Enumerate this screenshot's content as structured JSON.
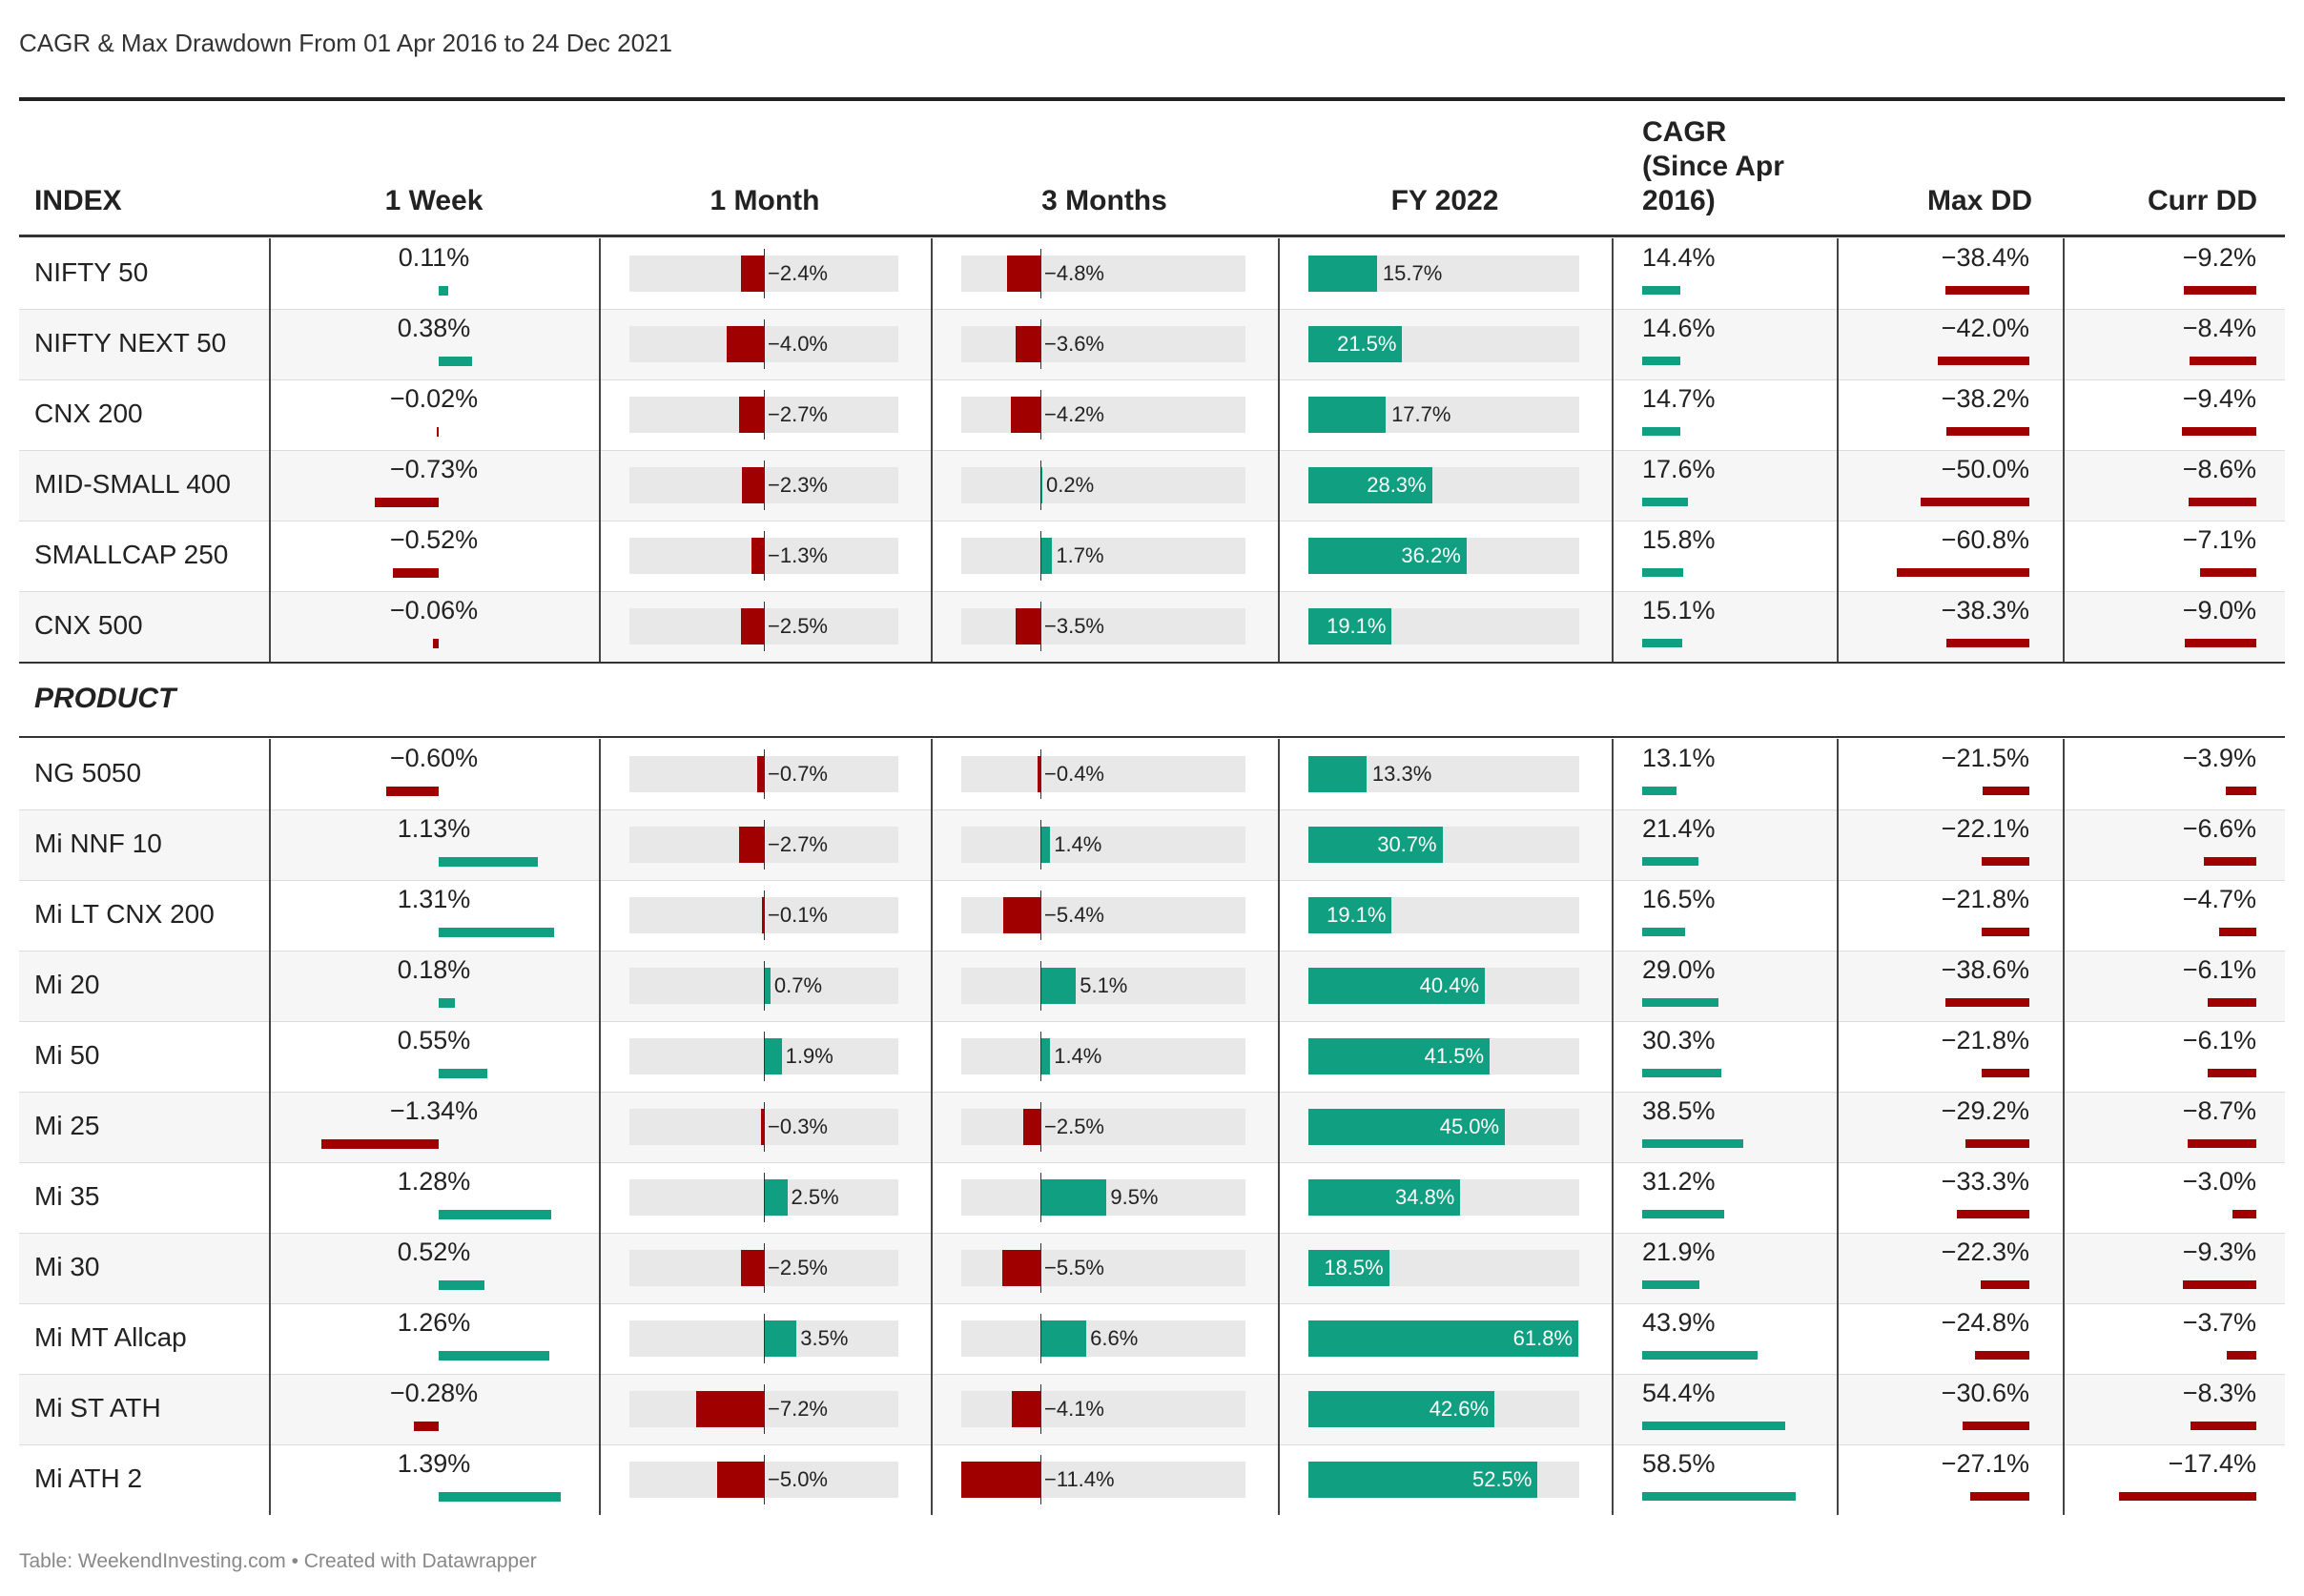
{
  "title": "CAGR & Max Drawdown From 01 Apr 2016 to 24 Dec 2021",
  "footer": "Table: WeekendInvesting.com • Created with Datawrapper",
  "colors": {
    "positive": "#109f80",
    "negative": "#a00000",
    "track": "#e8e8e8"
  },
  "chart_data": {
    "type": "table",
    "columns": [
      "INDEX",
      "1 Week",
      "1 Month",
      "3 Months",
      "FY 2022",
      "CAGR\n(Since Apr\n2016)",
      "Max DD",
      "Curr DD"
    ],
    "section_label": "PRODUCT",
    "index_rows": [
      {
        "name": "NIFTY 50",
        "week": 0.11,
        "month": -2.4,
        "months3": -4.8,
        "fy2022": 15.7,
        "cagr": 14.4,
        "maxdd": -38.4,
        "currdd": -9.2
      },
      {
        "name": "NIFTY NEXT 50",
        "week": 0.38,
        "month": -4.0,
        "months3": -3.6,
        "fy2022": 21.5,
        "cagr": 14.6,
        "maxdd": -42.0,
        "currdd": -8.4
      },
      {
        "name": "CNX 200",
        "week": -0.02,
        "month": -2.7,
        "months3": -4.2,
        "fy2022": 17.7,
        "cagr": 14.7,
        "maxdd": -38.2,
        "currdd": -9.4
      },
      {
        "name": "MID-SMALL 400",
        "week": -0.73,
        "month": -2.3,
        "months3": 0.2,
        "fy2022": 28.3,
        "cagr": 17.6,
        "maxdd": -50.0,
        "currdd": -8.6
      },
      {
        "name": "SMALLCAP 250",
        "week": -0.52,
        "month": -1.3,
        "months3": 1.7,
        "fy2022": 36.2,
        "cagr": 15.8,
        "maxdd": -60.8,
        "currdd": -7.1
      },
      {
        "name": "CNX 500",
        "week": -0.06,
        "month": -2.5,
        "months3": -3.5,
        "fy2022": 19.1,
        "cagr": 15.1,
        "maxdd": -38.3,
        "currdd": -9.0
      }
    ],
    "product_rows": [
      {
        "name": "NG 5050",
        "week": -0.6,
        "month": -0.7,
        "months3": -0.4,
        "fy2022": 13.3,
        "cagr": 13.1,
        "maxdd": -21.5,
        "currdd": -3.9
      },
      {
        "name": "Mi NNF 10",
        "week": 1.13,
        "month": -2.7,
        "months3": 1.4,
        "fy2022": 30.7,
        "cagr": 21.4,
        "maxdd": -22.1,
        "currdd": -6.6
      },
      {
        "name": "Mi LT CNX 200",
        "week": 1.31,
        "month": -0.1,
        "months3": -5.4,
        "fy2022": 19.1,
        "cagr": 16.5,
        "maxdd": -21.8,
        "currdd": -4.7
      },
      {
        "name": "Mi 20",
        "week": 0.18,
        "month": 0.7,
        "months3": 5.1,
        "fy2022": 40.4,
        "cagr": 29.0,
        "maxdd": -38.6,
        "currdd": -6.1
      },
      {
        "name": "Mi 50",
        "week": 0.55,
        "month": 1.9,
        "months3": 1.4,
        "fy2022": 41.5,
        "cagr": 30.3,
        "maxdd": -21.8,
        "currdd": -6.1
      },
      {
        "name": "Mi 25",
        "week": -1.34,
        "month": -0.3,
        "months3": -2.5,
        "fy2022": 45.0,
        "cagr": 38.5,
        "maxdd": -29.2,
        "currdd": -8.7
      },
      {
        "name": "Mi 35",
        "week": 1.28,
        "month": 2.5,
        "months3": 9.5,
        "fy2022": 34.8,
        "cagr": 31.2,
        "maxdd": -33.3,
        "currdd": -3.0
      },
      {
        "name": "Mi 30",
        "week": 0.52,
        "month": -2.5,
        "months3": -5.5,
        "fy2022": 18.5,
        "cagr": 21.9,
        "maxdd": -22.3,
        "currdd": -9.3
      },
      {
        "name": "Mi MT Allcap",
        "week": 1.26,
        "month": 3.5,
        "months3": 6.6,
        "fy2022": 61.8,
        "cagr": 43.9,
        "maxdd": -24.8,
        "currdd": -3.7
      },
      {
        "name": "Mi ST ATH",
        "week": -0.28,
        "month": -7.2,
        "months3": -4.1,
        "fy2022": 42.6,
        "cagr": 54.4,
        "maxdd": -30.6,
        "currdd": -8.3
      },
      {
        "name": "Mi ATH 2",
        "week": 1.39,
        "month": -5.0,
        "months3": -11.4,
        "fy2022": 52.5,
        "cagr": 58.5,
        "maxdd": -27.1,
        "currdd": -17.4
      }
    ]
  }
}
